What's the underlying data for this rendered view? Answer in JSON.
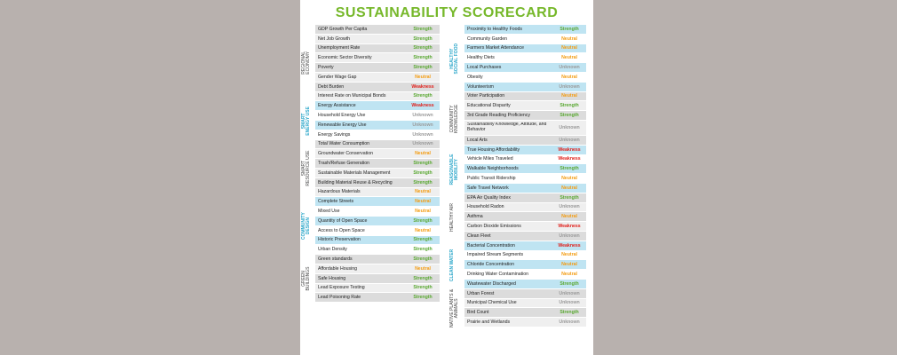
{
  "title": "SUSTAINABILITY SCORECARD",
  "colors": {
    "Strength": "#5aa832",
    "Neutral": "#f39c12",
    "Weakness": "#e0201b",
    "Unknown": "#9a9a9a",
    "title": "#76b82a",
    "blue_section": "#bfe4f2"
  },
  "left_sections": [
    {
      "name": "REGIONAL ECONOMY",
      "lines": [
        "REGIONAL",
        "ECONOMY"
      ],
      "style": "dark",
      "bg": "gray",
      "items": [
        {
          "label": "GDP Growth Per Capita",
          "rating": "Strength"
        },
        {
          "label": "Net Job Growth",
          "rating": "Strength"
        },
        {
          "label": "Unemployment Rate",
          "rating": "Strength"
        },
        {
          "label": "Economic Sector Diversity",
          "rating": "Strength"
        },
        {
          "label": "Poverty",
          "rating": "Strength"
        },
        {
          "label": "Gender Wage Gap",
          "rating": "Neutral"
        },
        {
          "label": "Debt Burden",
          "rating": "Weakness"
        },
        {
          "label": "Interest Rate on Municipal Bonds",
          "rating": "Strength"
        }
      ]
    },
    {
      "name": "SMART ENERGY USE",
      "lines": [
        "SMART",
        "ENERGY USE"
      ],
      "style": "teal",
      "bg": "blue",
      "items": [
        {
          "label": "Energy Assistance",
          "rating": "Weakness"
        },
        {
          "label": "Household Energy Use",
          "rating": "Unknown"
        },
        {
          "label": "Renewable Energy Use",
          "rating": "Unknown"
        },
        {
          "label": "Energy Savings",
          "rating": "Unknown"
        }
      ]
    },
    {
      "name": "SMART RESOURCE USE",
      "lines": [
        "SMART",
        "RESOURCE USE"
      ],
      "style": "dark",
      "bg": "gray",
      "items": [
        {
          "label": "Total Water Consumption",
          "rating": "Unknown"
        },
        {
          "label": "Groundwater Conservation",
          "rating": "Neutral"
        },
        {
          "label": "Trash/Refuse Generation",
          "rating": "Strength"
        },
        {
          "label": "Sustainable Materials Management",
          "rating": "Strength"
        },
        {
          "label": "Building Material Reuse & Recycling",
          "rating": "Strength"
        },
        {
          "label": "Hazardous Materials",
          "rating": "Neutral"
        }
      ]
    },
    {
      "name": "COMMUNITY DESIGN",
      "lines": [
        "COMMUNITY",
        "DESIGN"
      ],
      "style": "teal",
      "bg": "blue",
      "items": [
        {
          "label": "Complete Streets",
          "rating": "Neutral"
        },
        {
          "label": "Mixed Use",
          "rating": "Neutral"
        },
        {
          "label": "Quantity of Open Space",
          "rating": "Strength"
        },
        {
          "label": "Access to Open Space",
          "rating": "Neutral"
        },
        {
          "label": "Historic Preservation",
          "rating": "Strength"
        },
        {
          "label": "Urban Density",
          "rating": "Strength"
        }
      ]
    },
    {
      "name": "GREEN BUILDINGS",
      "lines": [
        "GREEN",
        "BUILDINGS"
      ],
      "style": "dark",
      "bg": "gray",
      "items": [
        {
          "label": "Green standards",
          "rating": "Strength"
        },
        {
          "label": "Affordable Housing",
          "rating": "Neutral"
        },
        {
          "label": "Safe Housing",
          "rating": "Strength"
        },
        {
          "label": "Lead Exposure Testing",
          "rating": "Strength"
        },
        {
          "label": "Lead Poisoning Rate",
          "rating": "Strength"
        }
      ]
    }
  ],
  "right_sections": [
    {
      "name": "HEALTHY SOCIAL FOOD",
      "lines": [
        "HEALTHY",
        "SOCIAL FOOD"
      ],
      "style": "teal",
      "bg": "blue",
      "items": [
        {
          "label": "Proximity to Healthy Foods",
          "rating": "Strength"
        },
        {
          "label": "Community Garden",
          "rating": "Neutral"
        },
        {
          "label": "Farmers Market Attendance",
          "rating": "Neutral"
        },
        {
          "label": "Healthy Diets",
          "rating": "Neutral"
        },
        {
          "label": "Local Purchases",
          "rating": "Unknown"
        },
        {
          "label": "Obesity",
          "rating": "Neutral"
        },
        {
          "label": "Volunteerism",
          "rating": "Unknown"
        }
      ]
    },
    {
      "name": "COMMUNITY KNOWLEDGE",
      "lines": [
        "COMMUNITY",
        "KNOWLEDGE"
      ],
      "style": "dark",
      "bg": "gray",
      "items": [
        {
          "label": "Voter Participation",
          "rating": "Neutral"
        },
        {
          "label": "Educational Disparity",
          "rating": "Strength"
        },
        {
          "label": "3rd Grade Reading Proficiency",
          "rating": "Strength"
        },
        {
          "label": "Sustainability Knowledge, Attitude, and Behavior",
          "rating": "Unknown",
          "tall": true
        },
        {
          "label": "Local Arts",
          "rating": "Unknown"
        }
      ]
    },
    {
      "name": "REASONABLE MOBILITY",
      "lines": [
        "REASONABLE",
        "MOBILITY"
      ],
      "style": "teal",
      "bg": "blue",
      "items": [
        {
          "label": "True Housing Affordability",
          "rating": "Weakness"
        },
        {
          "label": "Vehicle Miles Traveled",
          "rating": "Weakness"
        },
        {
          "label": "Walkable Neighborhoods",
          "rating": "Strength"
        },
        {
          "label": "Public Transit Ridership",
          "rating": "Neutral"
        },
        {
          "label": "Safe Travel Network",
          "rating": "Neutral"
        }
      ]
    },
    {
      "name": "HEALTHY AIR",
      "lines": [
        "HEALTHY AIR"
      ],
      "style": "dark",
      "bg": "gray",
      "items": [
        {
          "label": "EPA Air Quality Index",
          "rating": "Strength"
        },
        {
          "label": "Household Radon",
          "rating": "Unknown"
        },
        {
          "label": "Asthma",
          "rating": "Neutral"
        },
        {
          "label": "Carbon Dioxide Emissions",
          "rating": "Weakness"
        },
        {
          "label": "Clean Fleet",
          "rating": "Unknown"
        }
      ]
    },
    {
      "name": "CLEAN WATER",
      "lines": [
        "CLEAN WATER"
      ],
      "style": "teal",
      "bg": "blue",
      "items": [
        {
          "label": "Bacterial Concentration",
          "rating": "Weakness"
        },
        {
          "label": "Impaired Stream Segments",
          "rating": "Neutral"
        },
        {
          "label": "Chloride Concentration",
          "rating": "Neutral"
        },
        {
          "label": "Drinking Water Contamination",
          "rating": "Neutral"
        },
        {
          "label": "Wastewater Discharged",
          "rating": "Strength"
        }
      ]
    },
    {
      "name": "NATIVE PLANTS & ANIMALS",
      "lines": [
        "NATIVE PLANTS &",
        "ANIMALS"
      ],
      "style": "dark",
      "bg": "gray",
      "items": [
        {
          "label": "Urban Forest",
          "rating": "Unknown"
        },
        {
          "label": "Municipal Chemical Use",
          "rating": "Unknown"
        },
        {
          "label": "Bird Count",
          "rating": "Strength"
        },
        {
          "label": "Prairie and Wetlands",
          "rating": "Unknown"
        }
      ]
    }
  ]
}
